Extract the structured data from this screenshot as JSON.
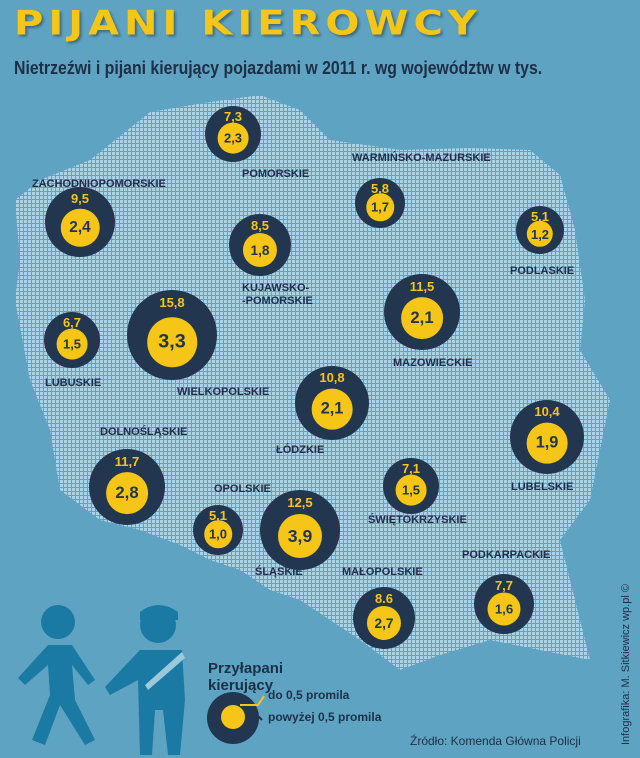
{
  "title": "PIJANI KIEROWCY",
  "subtitle": "Nietrzeźwi i pijani kierujący pojazdami w 2011 r. wg województw w tys.",
  "colors": {
    "background": "#5ea3c2",
    "bubble": "#22374f",
    "inner": "#f5c518",
    "map_dots": "#a9d3e6"
  },
  "regions": [
    {
      "name": "POMORSKIE",
      "total": "7,3",
      "over": "2,3"
    },
    {
      "name": "ZACHODNIOPOMORSKIE",
      "total": "9,5",
      "over": "2,4"
    },
    {
      "name": "WARMIŃSKO-MAZURSKIE",
      "total": "5,8",
      "over": "1,7"
    },
    {
      "name": "PODLASKIE",
      "total": "5,1",
      "over": "1,2"
    },
    {
      "name": "KUJAWSKO-\n-POMORSKIE",
      "total": "8,5",
      "over": "1,8"
    },
    {
      "name": "LUBUSKIE",
      "total": "6,7",
      "over": "1,5"
    },
    {
      "name": "WIELKOPOLSKIE",
      "total": "15,8",
      "over": "3,3"
    },
    {
      "name": "MAZOWIECKIE",
      "total": "11,5",
      "over": "2,1"
    },
    {
      "name": "ŁÓDZKIE",
      "total": "10,8",
      "over": "2,1"
    },
    {
      "name": "LUBELSKIE",
      "total": "10,4",
      "over": "1,9"
    },
    {
      "name": "DOLNOŚLĄSKIE",
      "total": "11,7",
      "over": "2,8"
    },
    {
      "name": "ŚWIĘTOKRZYSKIE",
      "total": "7,1",
      "over": "1,5"
    },
    {
      "name": "OPOLSKIE",
      "total": "5,1",
      "over": "1,0"
    },
    {
      "name": "ŚLĄSKIE",
      "total": "12,5",
      "over": "3,9"
    },
    {
      "name": "MAŁOPOLSKIE",
      "total": "8.6",
      "over": "2,7"
    },
    {
      "name": "PODKARPACKIE",
      "total": "7,7",
      "over": "1,6"
    }
  ],
  "legend": {
    "title": "Przyłapani\nkierujący",
    "inner": "do 0,5 promila",
    "outer": "powyżej 0,5 promila"
  },
  "source": "Źródło: Komenda Główna Policji",
  "credit": "Infografika: M. Sitkiewicz wp.pl ©",
  "icons": [
    "walking-person-icon",
    "police-officer-icon"
  ]
}
